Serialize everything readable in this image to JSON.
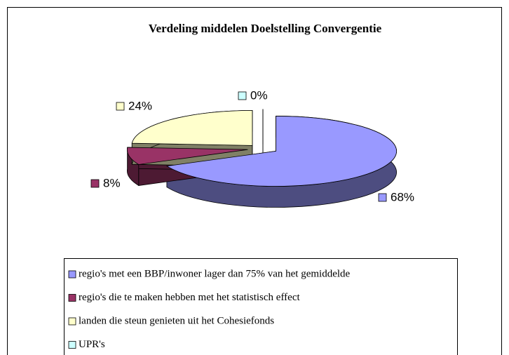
{
  "chart_data": {
    "type": "pie",
    "title": "Verdeling middelen Doelstelling Convergentie",
    "categories": [
      "regio's met een BBP/inwoner lager dan 75% van het gemiddelde",
      "regio's die te maken hebben met het statistisch effect",
      "landen die steun genieten uit het Cohesiefonds",
      "UPR's"
    ],
    "values": [
      68,
      8,
      24,
      0
    ],
    "value_labels": [
      "68%",
      "8%",
      "24%",
      "0%"
    ],
    "colors": [
      "#9999ff",
      "#993366",
      "#ffffcc",
      "#ccffff"
    ]
  }
}
